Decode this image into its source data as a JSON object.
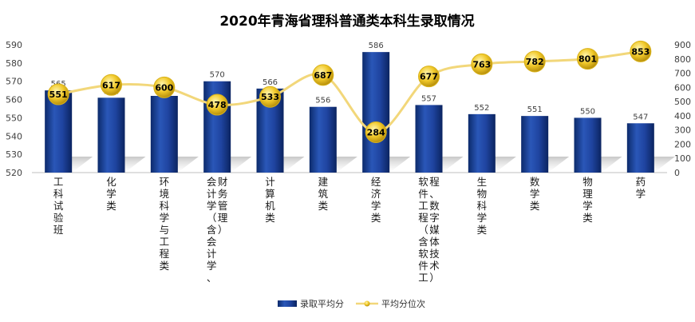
{
  "chart_data": {
    "type": "bar",
    "title": "2020年青海省理科普通类本科生录取情况",
    "categories": [
      [
        "工",
        "科",
        "试",
        "验",
        "班"
      ],
      [
        "化",
        "学",
        "类"
      ],
      [
        "环",
        "境",
        "科",
        "学",
        "与",
        "工",
        "程",
        "类"
      ],
      [
        "会",
        "计",
        "学",
        "（",
        "含",
        "会",
        "计",
        "学",
        "、",
        "财",
        "务",
        "管",
        "理",
        "）"
      ],
      [
        "计",
        "算",
        "机",
        "类"
      ],
      [
        "建",
        "筑",
        "类"
      ],
      [
        "经",
        "济",
        "学",
        "类"
      ],
      [
        "软",
        "件",
        "工",
        "程",
        "（",
        "含",
        "软",
        "件",
        "工",
        "程",
        "、",
        "数",
        "字",
        "媒",
        "体",
        "技",
        "术",
        "）"
      ],
      [
        "生",
        "物",
        "科",
        "学",
        "类"
      ],
      [
        "数",
        "学",
        "类"
      ],
      [
        "物",
        "理",
        "学",
        "类"
      ],
      [
        "药",
        "学"
      ]
    ],
    "series": [
      {
        "name": "录取平均分",
        "type": "bar",
        "axis": "left",
        "color": "#1F3F8F",
        "values": [
          565,
          561,
          562,
          570,
          566,
          556,
          586,
          557,
          552,
          551,
          550,
          547
        ]
      },
      {
        "name": "平均分位次",
        "type": "line",
        "axis": "right",
        "color": "#F2D77A",
        "values": [
          551,
          617,
          600,
          478,
          533,
          687,
          284,
          677,
          763,
          782,
          801,
          853
        ]
      }
    ],
    "y_left": {
      "ylim": [
        520,
        590
      ],
      "ticks": [
        520,
        530,
        540,
        550,
        560,
        570,
        580,
        590
      ]
    },
    "y_right": {
      "ylim": [
        0,
        900
      ],
      "ticks": [
        0,
        100,
        200,
        300,
        400,
        500,
        600,
        700,
        800,
        900
      ]
    },
    "legend": "bottom-center",
    "grid": false
  }
}
